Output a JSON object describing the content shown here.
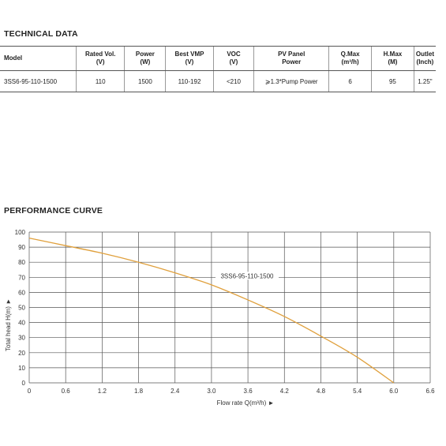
{
  "technical": {
    "title": "TECHNICAL DATA",
    "headers": [
      {
        "line1": "Model",
        "line2": ""
      },
      {
        "line1": "Rated Vol.",
        "line2": "(V)"
      },
      {
        "line1": "Power",
        "line2": "(W)"
      },
      {
        "line1": "Best VMP",
        "line2": "(V)"
      },
      {
        "line1": "VOC",
        "line2": "(V)"
      },
      {
        "line1": "PV Panel",
        "line2": "Power"
      },
      {
        "line1": "Q.Max",
        "line2": "(m³/h)"
      },
      {
        "line1": "H.Max",
        "line2": "(M)"
      },
      {
        "line1": "Outlet",
        "line2": "(Inch)"
      }
    ],
    "row": [
      "3SS6-95-110-1500",
      "110",
      "1500",
      "110-192",
      "<210",
      "⩾1.3*Pump Power",
      "6",
      "95",
      "1.25\""
    ]
  },
  "performance": {
    "title": "PERFORMANCE CURVE"
  },
  "chart_data": {
    "type": "line",
    "xlabel": "Flow rate Q(m³/h) ►",
    "ylabel": "Total head H(m) ►",
    "xlim": [
      0,
      6.6
    ],
    "ylim": [
      0,
      100
    ],
    "xticks": [
      "0",
      "0.6",
      "1.2",
      "1.8",
      "2.4",
      "3.0",
      "3.6",
      "4.2",
      "4.8",
      "5.4",
      "6.0",
      "6.6"
    ],
    "yticks": [
      "0",
      "10",
      "20",
      "30",
      "40",
      "50",
      "60",
      "70",
      "80",
      "90",
      "100"
    ],
    "grid": true,
    "series": [
      {
        "name": "3SS6-95-110-1500",
        "color": "#e0a03c",
        "x": [
          0,
          0.6,
          1.2,
          1.8,
          2.4,
          3.0,
          3.6,
          4.2,
          4.8,
          5.4,
          6.0
        ],
        "y": [
          96,
          91,
          86,
          80,
          73,
          65,
          55,
          44,
          31,
          17,
          0
        ]
      }
    ]
  }
}
